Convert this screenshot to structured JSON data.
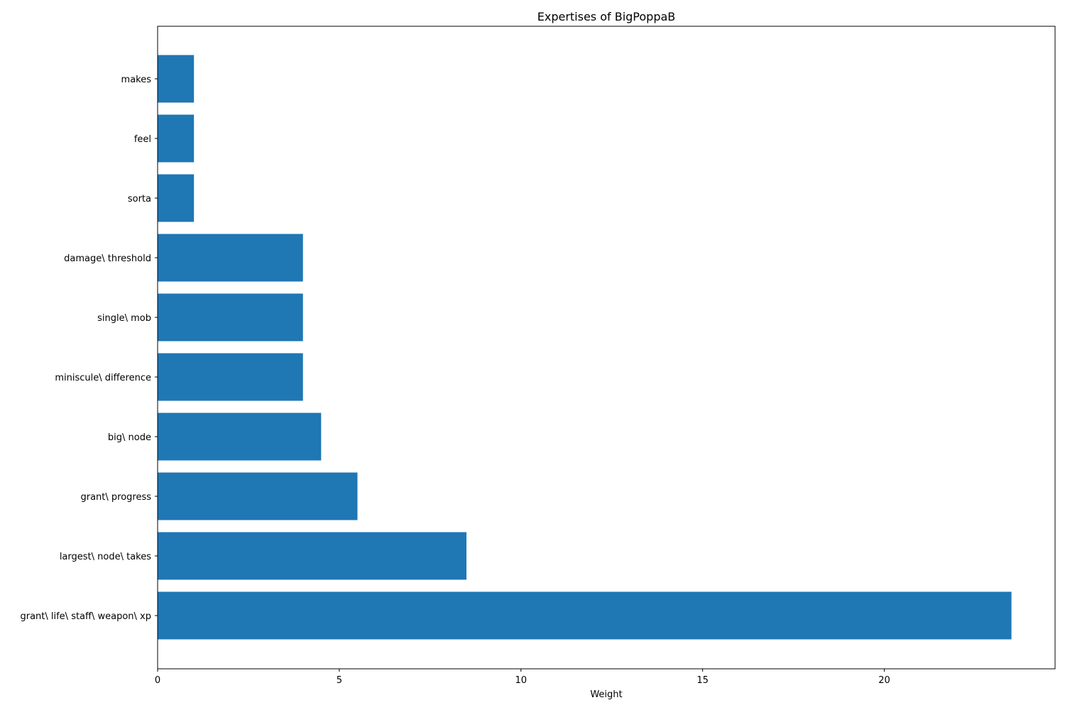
{
  "chart_data": {
    "type": "bar",
    "orientation": "horizontal",
    "title": "Expertises of BigPoppaB",
    "xlabel": "Weight",
    "ylabel": "",
    "categories": [
      "grant\\ life\\ staff\\ weapon\\ xp",
      "largest\\ node\\ takes",
      "grant\\ progress",
      "big\\ node",
      "miniscule\\ difference",
      "single\\ mob",
      "damage\\ threshold",
      "sorta",
      "feel",
      "makes"
    ],
    "values": [
      23.5,
      8.5,
      5.5,
      4.5,
      4,
      4,
      4,
      1,
      1,
      1
    ],
    "xlim": [
      0,
      24.7
    ],
    "xticks": [
      0,
      5,
      10,
      15,
      20
    ],
    "bar_color": "#1f77b4",
    "grid": false,
    "legend": false
  }
}
